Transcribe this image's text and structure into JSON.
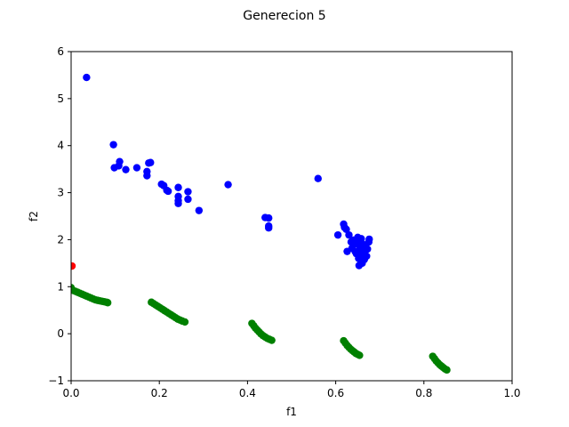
{
  "chart_data": {
    "type": "scatter",
    "title": "Generecion 5",
    "xlabel": "f1",
    "ylabel": "f2",
    "xlim": [
      0.0,
      1.0
    ],
    "ylim": [
      -1,
      6
    ],
    "xticks": [
      "0.0",
      "0.2",
      "0.4",
      "0.6",
      "0.8",
      "1.0"
    ],
    "yticks": [
      "−1",
      "0",
      "1",
      "2",
      "3",
      "4",
      "5",
      "6"
    ],
    "grid": false,
    "legend": "none",
    "series": [
      {
        "color": "#0000ff",
        "points": [
          [
            0.035,
            5.45
          ],
          [
            0.096,
            4.02
          ],
          [
            0.098,
            3.53
          ],
          [
            0.108,
            3.57
          ],
          [
            0.11,
            3.66
          ],
          [
            0.124,
            3.49
          ],
          [
            0.149,
            3.53
          ],
          [
            0.172,
            3.36
          ],
          [
            0.172,
            3.45
          ],
          [
            0.176,
            3.63
          ],
          [
            0.18,
            3.64
          ],
          [
            0.205,
            3.18
          ],
          [
            0.21,
            3.15
          ],
          [
            0.217,
            3.05
          ],
          [
            0.22,
            3.03
          ],
          [
            0.243,
            3.11
          ],
          [
            0.243,
            2.92
          ],
          [
            0.243,
            2.83
          ],
          [
            0.243,
            2.77
          ],
          [
            0.265,
            3.02
          ],
          [
            0.265,
            2.86
          ],
          [
            0.29,
            2.62
          ],
          [
            0.356,
            3.17
          ],
          [
            0.44,
            2.47
          ],
          [
            0.448,
            2.46
          ],
          [
            0.448,
            2.29
          ],
          [
            0.448,
            2.25
          ],
          [
            0.56,
            3.3
          ],
          [
            0.605,
            2.1
          ],
          [
            0.618,
            2.33
          ],
          [
            0.62,
            2.26
          ],
          [
            0.624,
            2.22
          ],
          [
            0.626,
            1.75
          ],
          [
            0.63,
            2.1
          ],
          [
            0.635,
            1.95
          ],
          [
            0.637,
            1.82
          ],
          [
            0.64,
            1.99
          ],
          [
            0.642,
            1.9
          ],
          [
            0.644,
            1.75
          ],
          [
            0.647,
            1.7
          ],
          [
            0.65,
            2.05
          ],
          [
            0.651,
            1.95
          ],
          [
            0.652,
            1.6
          ],
          [
            0.653,
            1.45
          ],
          [
            0.655,
            1.85
          ],
          [
            0.657,
            1.78
          ],
          [
            0.658,
            2.02
          ],
          [
            0.659,
            1.65
          ],
          [
            0.66,
            1.5
          ],
          [
            0.662,
            1.9
          ],
          [
            0.664,
            1.72
          ],
          [
            0.665,
            1.58
          ],
          [
            0.668,
            1.85
          ],
          [
            0.67,
            1.65
          ],
          [
            0.672,
            1.8
          ],
          [
            0.675,
            1.95
          ],
          [
            0.676,
            2.01
          ]
        ]
      },
      {
        "color": "#ff0000",
        "points": [
          [
            0.002,
            1.44
          ]
        ]
      },
      {
        "color": "#008000",
        "points": [
          [
            0.0,
            0.98
          ],
          [
            0.005,
            0.92
          ],
          [
            0.01,
            0.9
          ],
          [
            0.015,
            0.88
          ],
          [
            0.02,
            0.86
          ],
          [
            0.025,
            0.84
          ],
          [
            0.03,
            0.82
          ],
          [
            0.035,
            0.8
          ],
          [
            0.04,
            0.78
          ],
          [
            0.045,
            0.76
          ],
          [
            0.05,
            0.74
          ],
          [
            0.055,
            0.72
          ],
          [
            0.06,
            0.71
          ],
          [
            0.065,
            0.7
          ],
          [
            0.07,
            0.69
          ],
          [
            0.075,
            0.68
          ],
          [
            0.08,
            0.67
          ],
          [
            0.083,
            0.66
          ],
          [
            0.182,
            0.67
          ],
          [
            0.187,
            0.64
          ],
          [
            0.192,
            0.61
          ],
          [
            0.197,
            0.58
          ],
          [
            0.202,
            0.55
          ],
          [
            0.207,
            0.52
          ],
          [
            0.212,
            0.49
          ],
          [
            0.217,
            0.46
          ],
          [
            0.222,
            0.43
          ],
          [
            0.227,
            0.4
          ],
          [
            0.232,
            0.37
          ],
          [
            0.237,
            0.34
          ],
          [
            0.242,
            0.31
          ],
          [
            0.247,
            0.29
          ],
          [
            0.252,
            0.27
          ],
          [
            0.258,
            0.25
          ],
          [
            0.41,
            0.22
          ],
          [
            0.414,
            0.17
          ],
          [
            0.418,
            0.12
          ],
          [
            0.422,
            0.08
          ],
          [
            0.426,
            0.04
          ],
          [
            0.43,
            0.0
          ],
          [
            0.435,
            -0.04
          ],
          [
            0.44,
            -0.07
          ],
          [
            0.445,
            -0.1
          ],
          [
            0.45,
            -0.12
          ],
          [
            0.455,
            -0.14
          ],
          [
            0.618,
            -0.15
          ],
          [
            0.622,
            -0.2
          ],
          [
            0.626,
            -0.25
          ],
          [
            0.63,
            -0.29
          ],
          [
            0.634,
            -0.33
          ],
          [
            0.638,
            -0.36
          ],
          [
            0.642,
            -0.39
          ],
          [
            0.646,
            -0.42
          ],
          [
            0.65,
            -0.44
          ],
          [
            0.654,
            -0.46
          ],
          [
            0.82,
            -0.48
          ],
          [
            0.824,
            -0.53
          ],
          [
            0.828,
            -0.58
          ],
          [
            0.832,
            -0.62
          ],
          [
            0.836,
            -0.66
          ],
          [
            0.84,
            -0.69
          ],
          [
            0.844,
            -0.72
          ],
          [
            0.848,
            -0.75
          ],
          [
            0.852,
            -0.77
          ]
        ]
      }
    ]
  }
}
